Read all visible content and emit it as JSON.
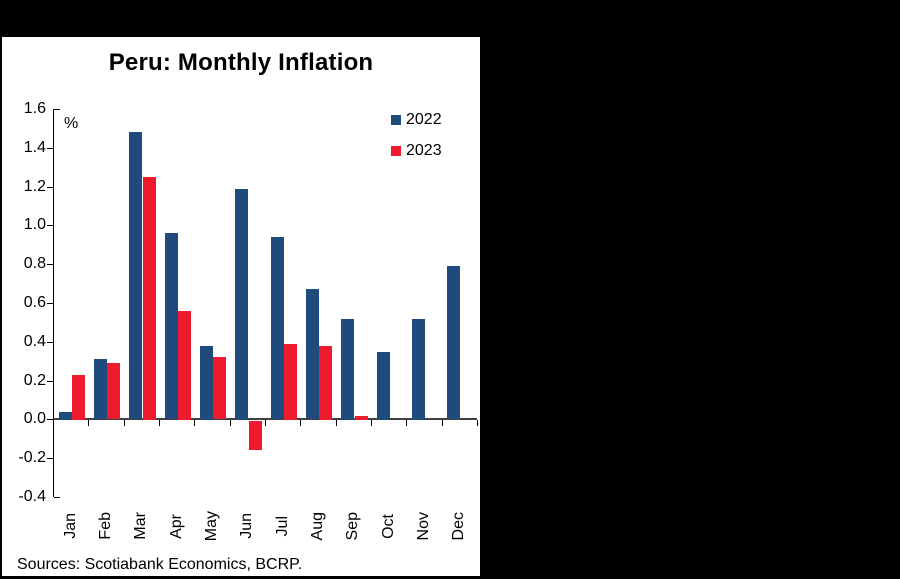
{
  "window": {
    "background_color": "#000000",
    "card_background": "#ffffff"
  },
  "chart": {
    "title": "Peru: Monthly Inflation",
    "unit_label": "%",
    "source": "Sources: Scotiabank Economics, BCRP."
  },
  "chart_data": {
    "type": "bar",
    "title": "Peru: Monthly Inflation",
    "xlabel": "",
    "ylabel": "%",
    "categories": [
      "Jan",
      "Feb",
      "Mar",
      "Apr",
      "May",
      "Jun",
      "Jul",
      "Aug",
      "Sep",
      "Oct",
      "Nov",
      "Dec"
    ],
    "series": [
      {
        "name": "2022",
        "color": "#1F4B7C",
        "values": [
          0.04,
          0.31,
          1.48,
          0.96,
          0.38,
          1.19,
          0.94,
          0.67,
          0.52,
          0.35,
          0.52,
          0.79
        ]
      },
      {
        "name": "2023",
        "color": "#ED1B2D",
        "values": [
          0.23,
          0.29,
          1.25,
          0.56,
          0.32,
          -0.15,
          0.39,
          0.38,
          0.02,
          null,
          null,
          null
        ]
      }
    ],
    "ylim": [
      -0.4,
      1.6
    ],
    "ytick_step": 0.2,
    "yticks": [
      1.6,
      1.4,
      1.2,
      1.0,
      0.8,
      0.6,
      0.4,
      0.2,
      0.0,
      -0.2,
      -0.4
    ],
    "grid": false,
    "legend_position": "top-right"
  }
}
